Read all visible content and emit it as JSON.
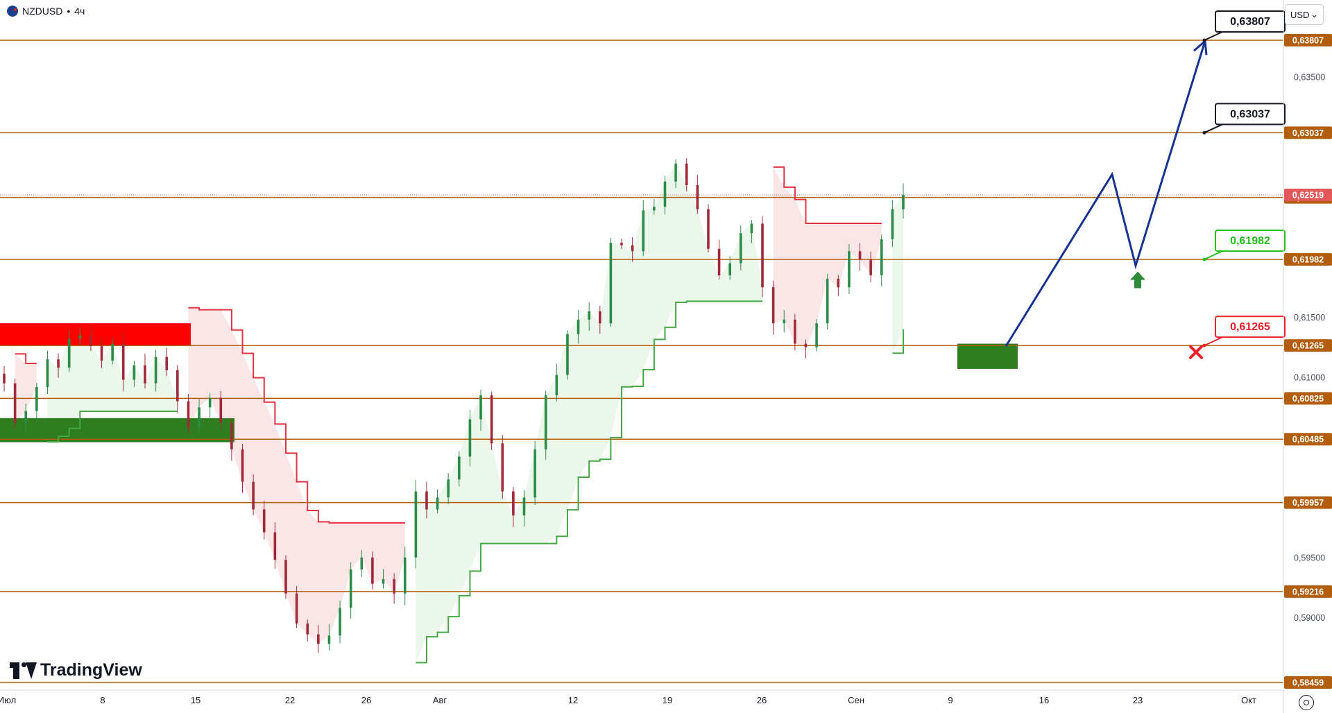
{
  "header": {
    "symbol": "NZDUSD",
    "separator": "•",
    "timeframe": "4ч"
  },
  "currency": "USD",
  "logo": {
    "text": "TradingView"
  },
  "colors": {
    "level_line": "#b25e0c",
    "level_label_bg": "#b25e0c",
    "current_price_bg": "#e25858",
    "green_label": "#22c11a",
    "red_label": "#e8212a",
    "projection": "#18328f",
    "supertrend_up": "#44a743",
    "supertrend_down": "#e4323f",
    "up_fill": "#e8f6e8",
    "down_fill": "#fbe3e4",
    "supply_zone": "#ff0000",
    "demand_zone": "#2e7d1f",
    "candle_up": "#2b8c47",
    "candle_down": "#a12a3a"
  },
  "chart_data": {
    "type": "candlestick",
    "symbol": "NZDUSD",
    "timeframe": "4ч",
    "ylim": [
      0.5845,
      0.6395
    ],
    "y_ticks": [
      "0,63500",
      "0,61500",
      "0,61000",
      "0,59500",
      "0,59000"
    ],
    "x_ticks": [
      "Июл",
      "8",
      "15",
      "22",
      "26",
      "Авг",
      "12",
      "19",
      "26",
      "Сен",
      "9",
      "16",
      "23",
      "Окт"
    ],
    "levels": [
      "0,63807",
      "0,63037",
      "0,62498",
      "0,61982",
      "0,61265",
      "0,60825",
      "0,60485",
      "0,59957",
      "0,59216",
      "0,58459"
    ],
    "current_price": "0,62519",
    "targets": [
      {
        "label": "0,63807",
        "value": 0.63807,
        "style": "white"
      },
      {
        "label": "0,63037",
        "value": 0.63037,
        "style": "white"
      },
      {
        "label": "0,61982",
        "value": 0.61982,
        "style": "green"
      },
      {
        "label": "0,61265",
        "value": 0.61265,
        "style": "red"
      }
    ],
    "close_path": [
      [
        0.6095,
        0.6062,
        0.6072,
        0.6092,
        0.6115,
        0.6108,
        0.6132,
        0.6135,
        0.6126,
        0.6114,
        0.6128,
        0.6098,
        0.611,
        0.6095,
        0.6117
      ],
      [
        0.6106,
        0.608,
        0.6058,
        0.6075,
        0.6083,
        0.6062,
        0.604,
        0.6013,
        0.599,
        0.5971,
        0.5948,
        0.592,
        0.5895,
        0.5886,
        0.5878
      ],
      [
        0.5885,
        0.5908,
        0.594,
        0.595,
        0.5928,
        0.5932,
        0.592,
        0.595,
        0.6005,
        0.599,
        0.6,
        0.6015,
        0.6034,
        0.6065,
        0.6085
      ],
      [
        0.6045,
        0.6005,
        0.5985,
        0.6,
        0.604,
        0.6085,
        0.6102,
        0.6136,
        0.6148,
        0.6155,
        0.6145,
        0.6212,
        0.621,
        0.6205,
        0.6239
      ],
      [
        0.6242,
        0.6263,
        0.6278,
        0.626,
        0.624,
        0.6207,
        0.6185,
        0.6195,
        0.622,
        0.6228,
        0.6175,
        0.6145,
        0.6148,
        0.6128,
        0.6125
      ],
      [
        0.6145,
        0.6182,
        0.6175,
        0.6205,
        0.6198,
        0.6185,
        0.6215,
        0.624,
        0.6252
      ]
    ],
    "supply_zone": {
      "from_price": 0.6126,
      "to_price": 0.6145
    },
    "demand_zones": [
      {
        "from_price": 0.6046,
        "to_price": 0.6066
      },
      {
        "from_price": 0.6107,
        "to_price": 0.6128
      }
    ],
    "projection": [
      0.6126,
      0.6269,
      0.6193,
      0.638
    ],
    "markers": [
      {
        "type": "arrow-up",
        "price": 0.618
      },
      {
        "type": "cross",
        "price": 0.6121
      }
    ]
  }
}
